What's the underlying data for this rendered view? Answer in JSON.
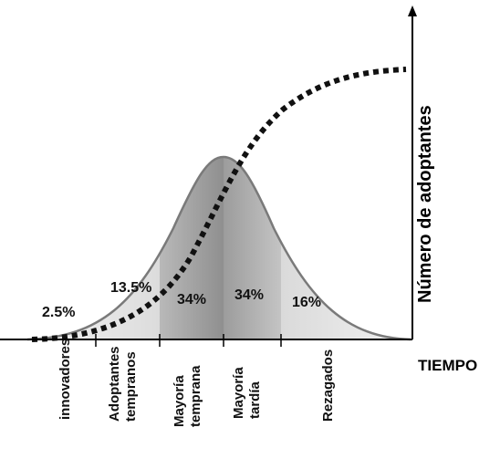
{
  "diagram": {
    "y_axis_label": "Número de adoptantes",
    "x_axis_label": "TIEMPO",
    "segments": [
      {
        "percent": "2.5%",
        "category": [
          "innovadores"
        ]
      },
      {
        "percent": "13.5%",
        "category": [
          "Adoptantes",
          "tempranos"
        ]
      },
      {
        "percent": "34%",
        "category": [
          "Mayoría",
          "temprana"
        ]
      },
      {
        "percent": "34%",
        "category": [
          "Mayoría",
          "tardía"
        ]
      },
      {
        "percent": "16%",
        "category": [
          "Rezagados"
        ]
      }
    ],
    "colors": {
      "curve_outline": "#7a7a7a",
      "dotted_curve": "#111111",
      "axis": "#000000"
    }
  }
}
